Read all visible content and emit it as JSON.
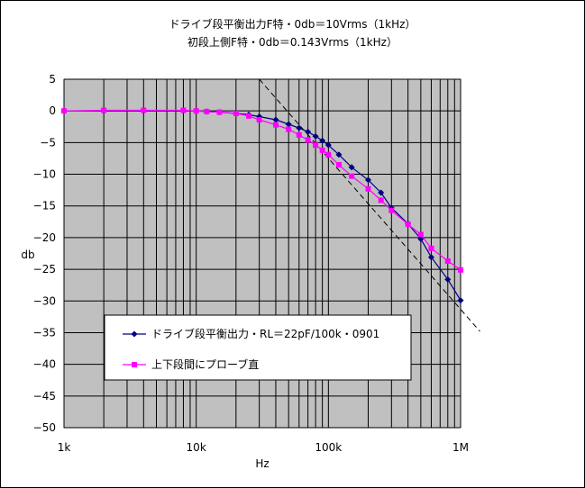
{
  "chart_data": {
    "type": "line",
    "title": "ドライブ段平衡出力F特・0db＝10Vrms（1kHz）",
    "subtitle": "初段上側F特・0db＝0.143Vrms（1kHz）",
    "xlabel": "Hz",
    "ylabel": "db",
    "x_scale": "log",
    "xlim": [
      1000,
      1000000
    ],
    "ylim": [
      -50,
      5
    ],
    "x_ticks": [
      {
        "value": 1000,
        "label": "1k"
      },
      {
        "value": 10000,
        "label": "10k"
      },
      {
        "value": 100000,
        "label": "100k"
      },
      {
        "value": 1000000,
        "label": "1M"
      }
    ],
    "y_ticks": [
      5,
      0,
      -5,
      -10,
      -15,
      -20,
      -25,
      -30,
      -35,
      -40,
      -45,
      -50
    ],
    "grid": true,
    "legend_position": "bottom-left",
    "series": [
      {
        "name": "ドライブ段平衡出力・RL＝22pF/100k・0901",
        "color": "#000080",
        "marker": "diamond",
        "points": [
          [
            1000,
            0
          ],
          [
            2000,
            0
          ],
          [
            4000,
            0
          ],
          [
            8000,
            0
          ],
          [
            10000,
            0
          ],
          [
            12000,
            -0.1
          ],
          [
            15000,
            -0.2
          ],
          [
            20000,
            -0.4
          ],
          [
            25000,
            -0.6
          ],
          [
            30000,
            -0.9
          ],
          [
            40000,
            -1.4
          ],
          [
            50000,
            -2.1
          ],
          [
            60000,
            -2.7
          ],
          [
            70000,
            -3.3
          ],
          [
            80000,
            -4.0
          ],
          [
            90000,
            -4.7
          ],
          [
            100000,
            -5.4
          ],
          [
            120000,
            -6.9
          ],
          [
            150000,
            -8.9
          ],
          [
            200000,
            -10.9
          ],
          [
            250000,
            -12.9
          ],
          [
            300000,
            -15.3
          ],
          [
            400000,
            -17.8
          ],
          [
            500000,
            -20.2
          ],
          [
            600000,
            -23.1
          ],
          [
            800000,
            -26.6
          ],
          [
            1000000,
            -29.9
          ]
        ]
      },
      {
        "name": "上下段間にプローブ直",
        "color": "#ff00ff",
        "marker": "square",
        "points": [
          [
            1000,
            0
          ],
          [
            2000,
            0.1
          ],
          [
            4000,
            0.1
          ],
          [
            8000,
            0.1
          ],
          [
            10000,
            0
          ],
          [
            12000,
            -0.1
          ],
          [
            15000,
            -0.2
          ],
          [
            20000,
            -0.4
          ],
          [
            25000,
            -0.8
          ],
          [
            30000,
            -1.4
          ],
          [
            40000,
            -2.2
          ],
          [
            50000,
            -2.9
          ],
          [
            60000,
            -3.8
          ],
          [
            70000,
            -4.6
          ],
          [
            80000,
            -5.4
          ],
          [
            90000,
            -6.2
          ],
          [
            100000,
            -6.9
          ],
          [
            120000,
            -8.5
          ],
          [
            150000,
            -10.3
          ],
          [
            200000,
            -12.3
          ],
          [
            250000,
            -14.1
          ],
          [
            300000,
            -15.7
          ],
          [
            400000,
            -17.9
          ],
          [
            500000,
            -19.5
          ],
          [
            600000,
            -21.7
          ],
          [
            800000,
            -23.7
          ],
          [
            1000000,
            -25.1
          ]
        ]
      }
    ],
    "reference_line": {
      "style": "dashed",
      "color": "#000000",
      "points": [
        [
          30000,
          5
        ],
        [
          1400000,
          -34.8
        ]
      ]
    }
  }
}
